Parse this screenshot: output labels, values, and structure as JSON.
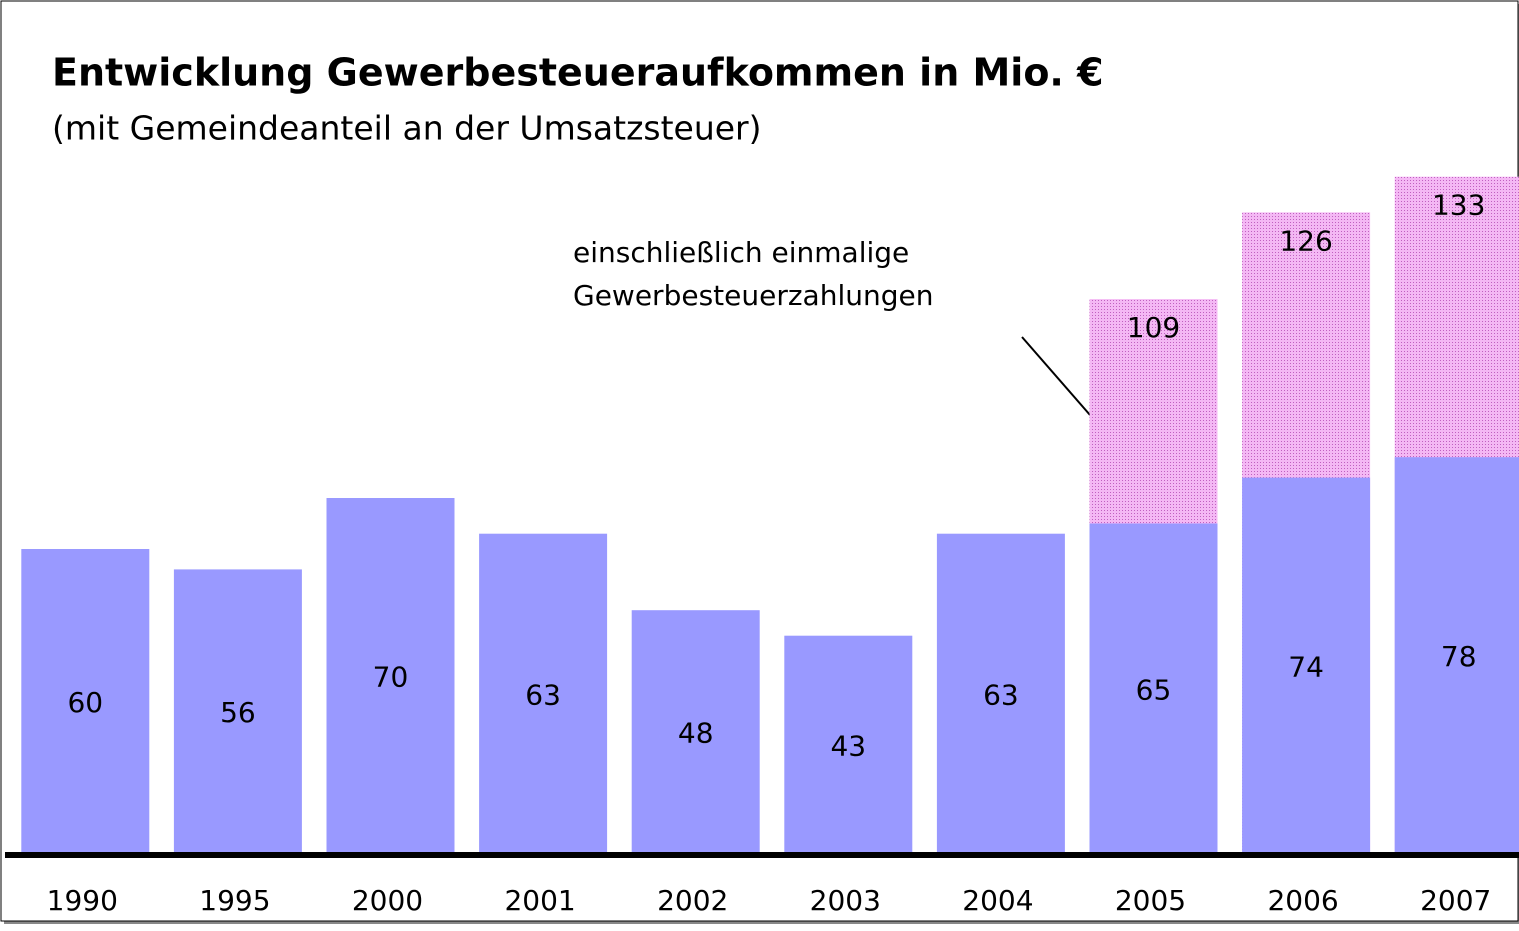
{
  "chart_data": {
    "type": "bar",
    "title": "Entwicklung Gewerbesteueraufkommen in Mio. €",
    "subtitle": "(mit Gemeindeanteil an der Umsatzsteuer)",
    "annotation": [
      "einschließlich einmalige",
      "Gewerbesteuerzahlungen"
    ],
    "categories": [
      "1990",
      "1995",
      "2000",
      "2001",
      "2002",
      "2003",
      "2004",
      "2005",
      "2006",
      "2007"
    ],
    "series": [
      {
        "color": "#f0a0f0",
        "values": [
          null,
          null,
          null,
          null,
          null,
          null,
          null,
          109,
          126,
          133
        ]
      },
      {
        "color": "#9999ff",
        "values": [
          60,
          56,
          70,
          63,
          48,
          43,
          63,
          65,
          74,
          78
        ]
      }
    ],
    "ylim": [
      0,
      150
    ]
  }
}
